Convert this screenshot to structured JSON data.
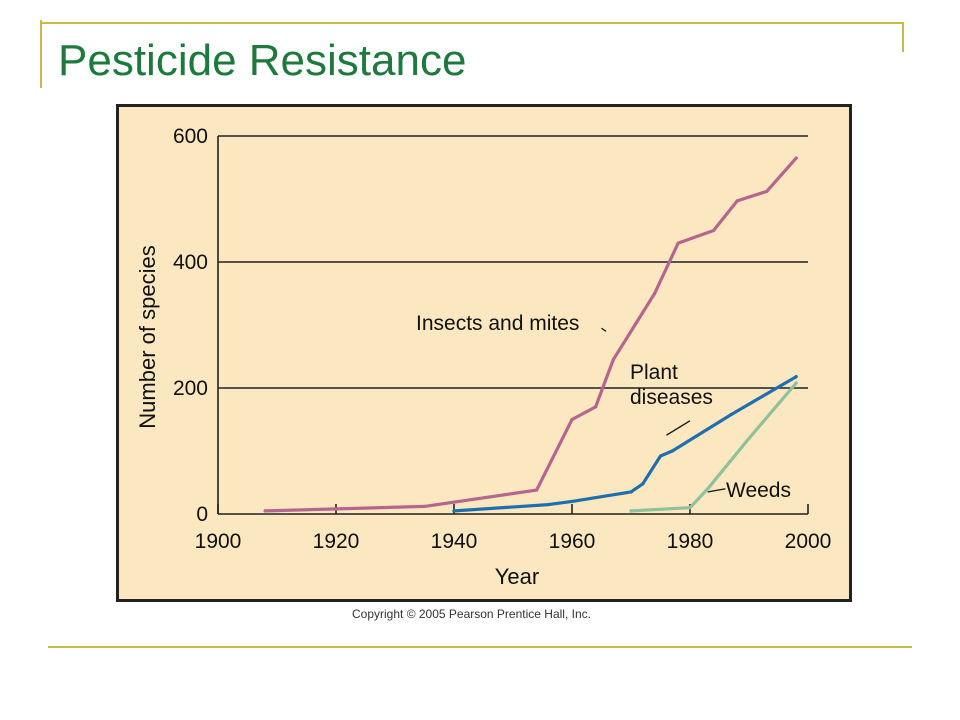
{
  "slide": {
    "title": "Pesticide Resistance",
    "copyright": "Copyright © 2005 Pearson Prentice Hall, Inc.",
    "accent_color": "#c9b84c",
    "title_color": "#1e7a3c"
  },
  "chart_data": {
    "type": "line",
    "title": "",
    "xlabel": "Year",
    "ylabel": "Number of species",
    "xlim": [
      1900,
      2000
    ],
    "ylim": [
      0,
      600
    ],
    "x_ticks": [
      1900,
      1920,
      1940,
      1960,
      1980,
      2000
    ],
    "y_ticks": [
      0,
      200,
      400,
      600
    ],
    "grid": "horizontal",
    "background": "#fbe7c0",
    "series": [
      {
        "name": "Insects and mites",
        "color": "#b5668e",
        "points": [
          [
            1908,
            5
          ],
          [
            1935,
            12
          ],
          [
            1954,
            38
          ],
          [
            1960,
            150
          ],
          [
            1964,
            170
          ],
          [
            1967,
            245
          ],
          [
            1974,
            350
          ],
          [
            1978,
            430
          ],
          [
            1984,
            450
          ],
          [
            1988,
            497
          ],
          [
            1993,
            512
          ],
          [
            1998,
            565
          ]
        ]
      },
      {
        "name": "Plant diseases",
        "color": "#1f6fae",
        "points": [
          [
            1940,
            5
          ],
          [
            1956,
            15
          ],
          [
            1960,
            20
          ],
          [
            1970,
            35
          ],
          [
            1972,
            48
          ],
          [
            1975,
            92
          ],
          [
            1977,
            100
          ],
          [
            1987,
            158
          ],
          [
            1998,
            218
          ]
        ]
      },
      {
        "name": "Weeds",
        "color": "#8fc29b",
        "points": [
          [
            1970,
            5
          ],
          [
            1980,
            10
          ],
          [
            1983,
            40
          ],
          [
            1990,
            120
          ],
          [
            1998,
            208
          ]
        ]
      }
    ]
  }
}
